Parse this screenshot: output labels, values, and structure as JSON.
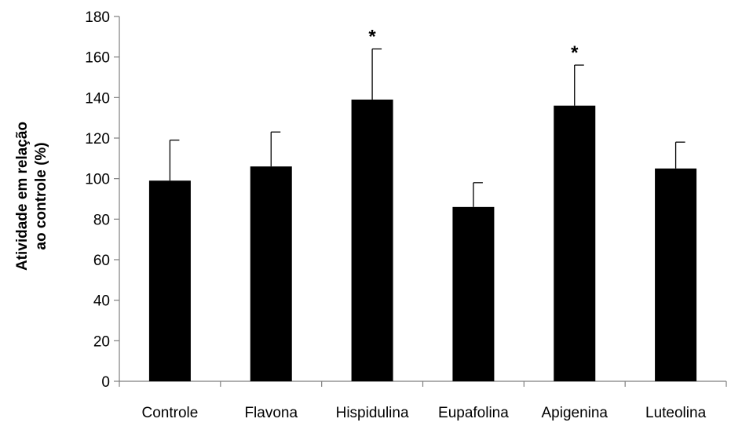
{
  "chart_data": {
    "type": "bar",
    "title": "",
    "xlabel": "",
    "ylabel_lines": [
      "Atividade em relação",
      "ao controle (%)"
    ],
    "categories": [
      "Controle",
      "Flavona",
      "Hispidulina",
      "Eupafolina",
      "Apigenina",
      "Luteolina"
    ],
    "values": [
      99,
      106,
      139,
      86,
      136,
      105
    ],
    "error_upper": [
      119,
      123,
      164,
      98,
      156,
      118
    ],
    "significance": [
      "",
      "",
      "*",
      "",
      "*",
      ""
    ],
    "ylim": [
      0,
      180
    ],
    "yticks": [
      0,
      20,
      40,
      60,
      80,
      100,
      120,
      140,
      160,
      180
    ],
    "bar_color": "#000000",
    "grid": false
  }
}
